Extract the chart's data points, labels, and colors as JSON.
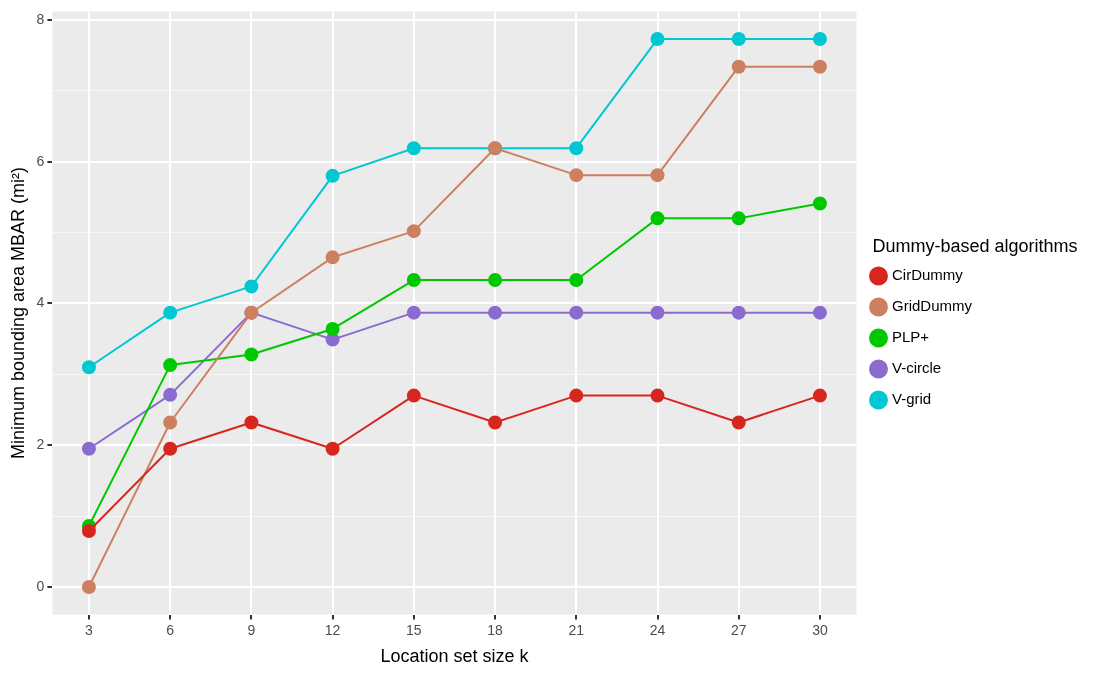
{
  "chart_data": {
    "type": "line",
    "xlabel": "Location set size k",
    "ylabel": "Minimum bounding area MBAR (mi²)",
    "legend_title": "Dummy-based algorithms",
    "x": [
      3,
      6,
      9,
      12,
      15,
      18,
      21,
      24,
      27,
      30
    ],
    "series": [
      {
        "name": "CirDummy",
        "color": "#d7261e",
        "values": [
          0.79,
          1.95,
          2.32,
          1.95,
          2.7,
          2.32,
          2.7,
          2.7,
          2.32,
          2.7
        ]
      },
      {
        "name": "GridDummy",
        "color": "#cd8060",
        "values": [
          0,
          2.32,
          3.87,
          4.65,
          5.02,
          6.19,
          5.81,
          5.81,
          7.34,
          7.34
        ]
      },
      {
        "name": "PLP+",
        "color": "#00c800",
        "values": [
          0.86,
          3.13,
          3.28,
          3.64,
          4.33,
          4.33,
          4.33,
          5.2,
          5.2,
          5.41
        ]
      },
      {
        "name": "V-circle",
        "color": "#8a6bd0",
        "values": [
          1.95,
          2.71,
          3.87,
          3.49,
          3.87,
          3.87,
          3.87,
          3.87,
          3.87,
          3.87
        ]
      },
      {
        "name": "V-grid",
        "color": "#00c8d2",
        "values": [
          3.1,
          3.87,
          4.24,
          5.8,
          6.19,
          6.19,
          6.19,
          7.73,
          7.73,
          7.73
        ]
      }
    ],
    "xlim": [
      1.65,
      31.35
    ],
    "xticks": [
      3,
      6,
      9,
      12,
      15,
      18,
      21,
      24,
      27,
      30
    ],
    "ylim": [
      -0.39,
      8.12
    ],
    "yticks": [
      0,
      {
        "value": 1,
        "label": null
      },
      2,
      {
        "value": 3,
        "label": null
      },
      4,
      {
        "value": 5,
        "label": null
      },
      6,
      {
        "value": 7,
        "label": null
      },
      8
    ],
    "grid": true,
    "legend": "right",
    "marker": "circle",
    "line_style": "solid"
  }
}
